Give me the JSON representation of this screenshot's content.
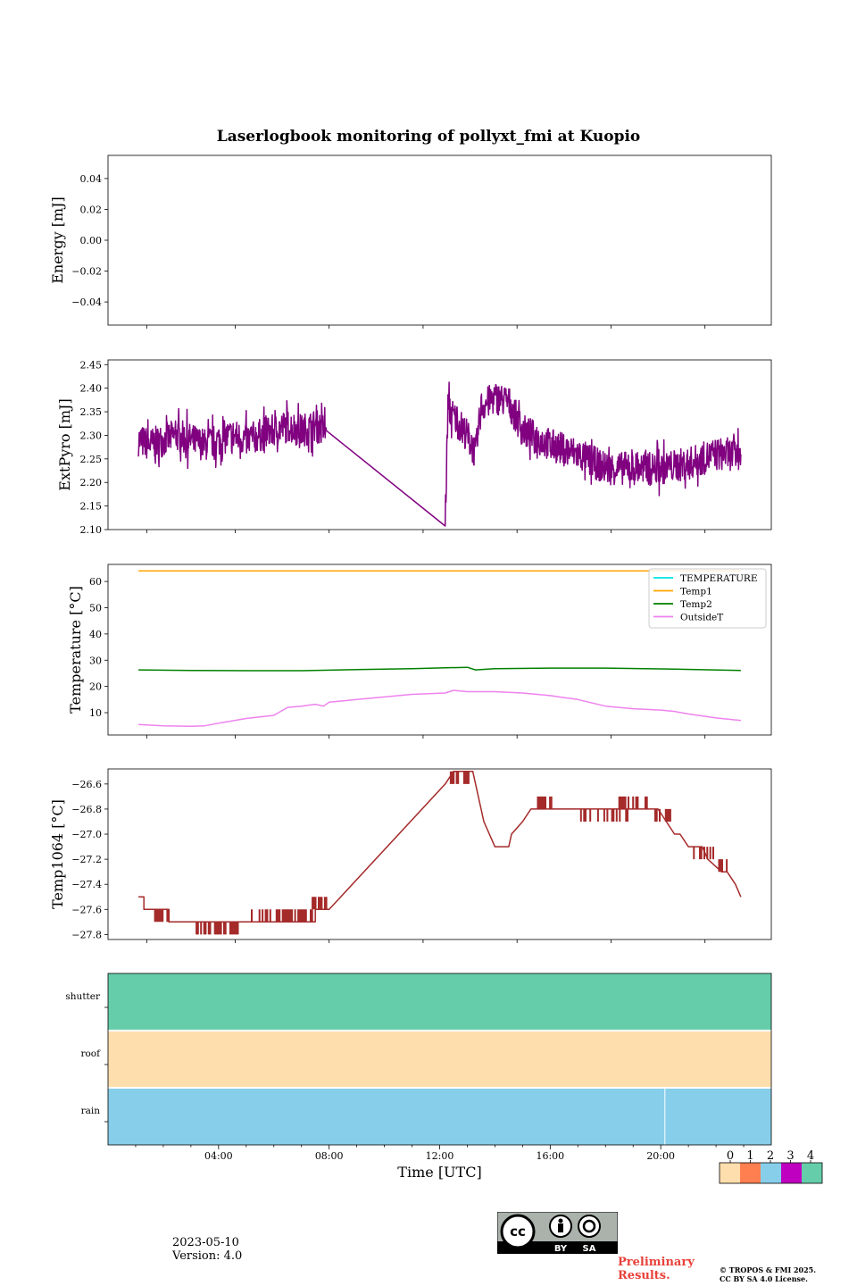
{
  "figure": {
    "title": "Laserlogbook monitoring of pollyxt_fmi at Kuopio",
    "date": "2023-05-10",
    "version": "Version: 4.0",
    "preliminary": [
      "Preliminary",
      "Results."
    ],
    "copyright": [
      "© TROPOS & FMI 2025.",
      "CC BY SA 4.0 License."
    ],
    "license_badge": [
      "BY",
      "SA"
    ]
  },
  "chart_data": [
    {
      "id": "energy",
      "type": "line",
      "ylabel": "Energy [mJ]",
      "ylim": [
        -0.055,
        0.055
      ],
      "yticks": [
        0.04,
        0.02,
        0.0,
        -0.02,
        -0.04
      ],
      "ytick_labels": [
        "0.04",
        "0.02",
        "0.00",
        "−0.02",
        "−0.04"
      ],
      "xlim": [
        0,
        24
      ],
      "series": []
    },
    {
      "id": "extpyro",
      "type": "line",
      "ylabel": "ExtPyro [mJ]",
      "ylim": [
        2.1,
        2.46
      ],
      "yticks": [
        2.45,
        2.4,
        2.35,
        2.3,
        2.25,
        2.2,
        2.15,
        2.1
      ],
      "ytick_labels": [
        "2.45",
        "2.40",
        "2.35",
        "2.30",
        "2.25",
        "2.20",
        "2.15",
        "2.10"
      ],
      "xlim": [
        0,
        24
      ],
      "series": [
        {
          "name": "ExtPyro",
          "color": "#800080",
          "x": [
            1.1,
            1.5,
            2.0,
            2.5,
            3.0,
            3.5,
            4.0,
            4.5,
            5.0,
            5.5,
            6.0,
            6.5,
            7.0,
            7.5,
            7.9,
            12.2,
            12.3,
            12.5,
            13.0,
            13.3,
            13.5,
            14.0,
            14.5,
            15.0,
            16.0,
            17.0,
            18.0,
            19.0,
            20.0,
            21.0,
            22.0,
            22.9
          ],
          "y": [
            2.29,
            2.28,
            2.29,
            2.3,
            2.29,
            2.28,
            2.29,
            2.3,
            2.29,
            2.3,
            2.31,
            2.32,
            2.31,
            2.32,
            2.31,
            2.115,
            2.36,
            2.34,
            2.3,
            2.26,
            2.36,
            2.38,
            2.37,
            2.31,
            2.28,
            2.26,
            2.23,
            2.23,
            2.23,
            2.24,
            2.26,
            2.26
          ],
          "noise": 0.035
        }
      ]
    },
    {
      "id": "temperature",
      "type": "line",
      "ylabel": "Temperature [°C]",
      "ylim": [
        1.5,
        66.5
      ],
      "yticks": [
        60,
        50,
        40,
        30,
        20,
        10
      ],
      "ytick_labels": [
        "60",
        "50",
        "40",
        "30",
        "20",
        "10"
      ],
      "xlim": [
        0,
        24
      ],
      "legend": "top-right",
      "series": [
        {
          "name": "TEMPERATURE",
          "color": "#00e5e5",
          "x": [],
          "y": []
        },
        {
          "name": "Temp1",
          "color": "#ffa500",
          "x": [
            1.1,
            22.9
          ],
          "y": [
            64,
            64
          ]
        },
        {
          "name": "Temp2",
          "color": "#008000",
          "x": [
            1.1,
            3.0,
            5.0,
            7.0,
            9.0,
            11.0,
            13.0,
            13.3,
            14.0,
            16.0,
            18.0,
            20.0,
            22.9
          ],
          "y": [
            26.3,
            26.1,
            26.0,
            26.0,
            26.4,
            26.8,
            27.3,
            26.3,
            26.8,
            27.0,
            27.0,
            26.7,
            26.1
          ]
        },
        {
          "name": "OutsideT",
          "color": "#ee82ee",
          "x": [
            1.1,
            2.0,
            3.0,
            3.5,
            4.0,
            5.0,
            6.0,
            6.5,
            7.0,
            7.5,
            7.8,
            8.0,
            9.0,
            10.0,
            11.0,
            12.2,
            12.5,
            13.0,
            14.0,
            15.0,
            16.0,
            17.0,
            18.0,
            19.0,
            20.0,
            20.5,
            21.0,
            22.0,
            22.9
          ],
          "y": [
            5.5,
            5.0,
            4.8,
            5.0,
            6.0,
            7.8,
            9.0,
            12.0,
            12.5,
            13.2,
            12.5,
            14.0,
            15.0,
            16.0,
            17.0,
            17.5,
            18.5,
            18.0,
            18.0,
            17.5,
            16.5,
            15.0,
            12.5,
            11.5,
            11.0,
            10.5,
            9.5,
            8.0,
            7.0
          ]
        }
      ]
    },
    {
      "id": "temp1064",
      "type": "line",
      "ylabel": "Temp1064 [°C]",
      "ylim": [
        -27.84,
        -26.48
      ],
      "yticks": [
        -26.6,
        -26.8,
        -27.0,
        -27.2,
        -27.4,
        -27.6,
        -27.8
      ],
      "ytick_labels": [
        "−26.6",
        "−26.8",
        "−27.0",
        "−27.2",
        "−27.4",
        "−27.6",
        "−27.8"
      ],
      "xlim": [
        0,
        24
      ],
      "series": [
        {
          "name": "Temp1064",
          "color": "#a52a2a",
          "x": [
            1.1,
            1.3,
            1.3,
            2.2,
            2.2,
            4.7,
            4.7,
            7.5,
            7.5,
            8.0,
            12.2,
            12.5,
            13.2,
            13.5,
            13.6,
            14.0,
            14.5,
            14.6,
            15.0,
            15.3,
            15.5,
            16.0,
            19.5,
            19.8,
            19.9,
            20.2,
            20.5,
            20.7,
            21.0,
            21.5,
            21.7,
            22.2,
            22.4,
            22.7,
            22.9
          ],
          "y": [
            -27.5,
            -27.5,
            -27.6,
            -27.6,
            -27.7,
            -27.7,
            -27.7,
            -27.7,
            -27.6,
            -27.6,
            -26.6,
            -26.5,
            -26.5,
            -26.8,
            -26.9,
            -27.1,
            -27.1,
            -27.0,
            -26.9,
            -26.8,
            -26.8,
            -26.8,
            -26.8,
            -26.8,
            -26.8,
            -26.9,
            -27.0,
            -27.0,
            -27.1,
            -27.1,
            -27.2,
            -27.3,
            -27.3,
            -27.4,
            -27.5
          ],
          "flicker_segments": [
            [
              1.7,
              2.2,
              -27.6,
              -27.7
            ],
            [
              3.2,
              4.7,
              -27.7,
              -27.8
            ],
            [
              5.2,
              7.5,
              -27.6,
              -27.7
            ],
            [
              7.4,
              7.9,
              -27.5,
              -27.6
            ],
            [
              12.4,
              13.1,
              -26.5,
              -26.6
            ],
            [
              15.5,
              16.1,
              -26.7,
              -26.8
            ],
            [
              17.0,
              18.8,
              -26.8,
              -26.9
            ],
            [
              18.5,
              19.5,
              -26.7,
              -26.8
            ],
            [
              19.8,
              20.4,
              -26.8,
              -26.9
            ],
            [
              21.2,
              21.9,
              -27.1,
              -27.2
            ],
            [
              22.0,
              22.5,
              -27.2,
              -27.3
            ]
          ]
        }
      ]
    },
    {
      "id": "status",
      "type": "heatmap",
      "xlabel": "Time [UTC]",
      "xlim": [
        0,
        24
      ],
      "xticks": [
        4,
        8,
        12,
        16,
        20
      ],
      "xtick_labels": [
        "04:00",
        "08:00",
        "12:00",
        "16:00",
        "20:00"
      ],
      "rows": [
        {
          "label": "shutter",
          "value": 4
        },
        {
          "label": "roof",
          "value": 0
        },
        {
          "label": "rain",
          "value": 2,
          "gap_at": 20.15
        }
      ],
      "colorbar": {
        "ticks": [
          "0",
          "1",
          "2",
          "3",
          "4"
        ],
        "colors": [
          "#ffdead",
          "#ff7f50",
          "#87ceeb",
          "#c000c0",
          "#66cdaa"
        ]
      }
    }
  ]
}
